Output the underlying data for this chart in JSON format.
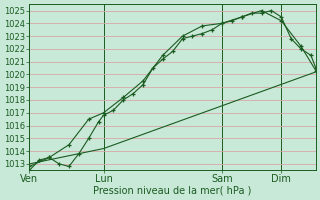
{
  "xlabel": "Pression niveau de la mer( hPa )",
  "bg_color": "#c8e8d8",
  "grid_color": "#d8a8a8",
  "line_color": "#1a5c20",
  "ylim": [
    1012.5,
    1025.5
  ],
  "yticks": [
    1013,
    1014,
    1015,
    1016,
    1017,
    1018,
    1019,
    1020,
    1021,
    1022,
    1023,
    1024,
    1025
  ],
  "xtick_labels": [
    "Ven",
    "Lun",
    "Sam",
    "Dim"
  ],
  "xtick_positions": [
    0,
    30,
    78,
    102
  ],
  "total_hours": 116,
  "vline_positions": [
    0,
    30,
    78,
    102
  ],
  "line1": {
    "x": [
      0,
      4,
      8,
      12,
      16,
      20,
      24,
      28,
      30,
      34,
      38,
      42,
      46,
      50,
      54,
      58,
      62,
      66,
      70,
      74,
      78,
      82,
      86,
      90,
      94,
      98,
      102,
      106,
      110,
      114,
      116
    ],
    "y": [
      1012.5,
      1013.3,
      1013.5,
      1013.0,
      1012.8,
      1013.8,
      1015.0,
      1016.3,
      1016.8,
      1017.2,
      1018.0,
      1018.5,
      1019.2,
      1020.5,
      1021.2,
      1021.8,
      1022.8,
      1023.0,
      1023.2,
      1023.5,
      1024.0,
      1024.2,
      1024.5,
      1024.8,
      1024.8,
      1025.0,
      1024.5,
      1022.8,
      1022.0,
      1021.5,
      1020.5
    ]
  },
  "line2": {
    "x": [
      0,
      8,
      16,
      24,
      30,
      38,
      46,
      54,
      62,
      70,
      78,
      86,
      94,
      102,
      110,
      116
    ],
    "y": [
      1012.8,
      1013.5,
      1014.5,
      1016.5,
      1017.0,
      1018.2,
      1019.5,
      1021.5,
      1023.0,
      1023.8,
      1024.0,
      1024.5,
      1025.0,
      1024.2,
      1022.2,
      1020.3
    ]
  },
  "line3": {
    "x": [
      0,
      30,
      116
    ],
    "y": [
      1013.0,
      1014.2,
      1020.2
    ]
  }
}
